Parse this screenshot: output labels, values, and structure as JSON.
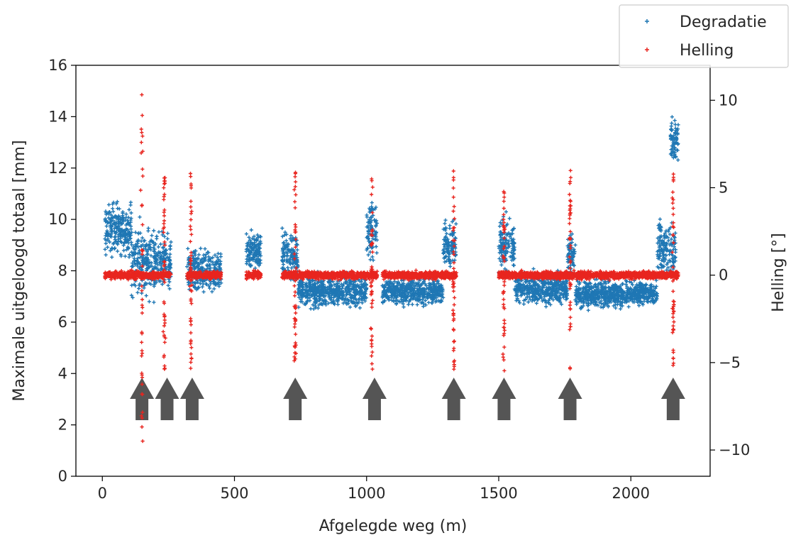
{
  "chart_data": {
    "type": "scatter",
    "title": "",
    "xlabel": "Afgelegde weg (m)",
    "ylabel": "Maximale uitgeloogd totaal [mm]",
    "y2label": "Helling [°]",
    "xlim": [
      -100,
      2300
    ],
    "ylim": [
      0,
      16
    ],
    "y2lim": [
      -11.5,
      12
    ],
    "xticks": [
      0,
      500,
      1000,
      1500,
      2000
    ],
    "yticks": [
      0,
      2,
      4,
      6,
      8,
      10,
      12,
      14,
      16
    ],
    "y2ticks": [
      -10,
      -5,
      0,
      5,
      10
    ],
    "legend_position": "top-right (outside)",
    "grid": false,
    "series": [
      {
        "name": "Degradatie",
        "axis": "left",
        "color": "#1f77b4",
        "marker": "plus",
        "segments": [
          {
            "x": [
              10,
              110
            ],
            "y_base": 9.6,
            "spread": 1.6
          },
          {
            "x": [
              110,
              200
            ],
            "y_base": 8.4,
            "spread": 2.2
          },
          {
            "x": [
              200,
              260
            ],
            "y_base": 8.3,
            "spread": 1.7
          },
          {
            "x": [
              320,
              450
            ],
            "y_base": 8.0,
            "spread": 1.2
          },
          {
            "x": [
              545,
              600
            ],
            "y_base": 8.8,
            "spread": 1.2
          },
          {
            "x": [
              680,
              740
            ],
            "y_base": 8.6,
            "spread": 1.6
          },
          {
            "x": [
              740,
              1000
            ],
            "y_base": 7.2,
            "spread": 0.9
          },
          {
            "x": [
              1000,
              1040
            ],
            "y_base": 9.6,
            "spread": 1.8
          },
          {
            "x": [
              1060,
              1290
            ],
            "y_base": 7.2,
            "spread": 0.8
          },
          {
            "x": [
              1290,
              1340
            ],
            "y_base": 9.0,
            "spread": 1.5
          },
          {
            "x": [
              1500,
              1560
            ],
            "y_base": 9.0,
            "spread": 1.8
          },
          {
            "x": [
              1560,
              1760
            ],
            "y_base": 7.3,
            "spread": 0.9
          },
          {
            "x": [
              1760,
              1790
            ],
            "y_base": 8.5,
            "spread": 1.5
          },
          {
            "x": [
              1790,
              2100
            ],
            "y_base": 7.1,
            "spread": 0.8
          },
          {
            "x": [
              2100,
              2170
            ],
            "y_base": 8.8,
            "spread": 1.8
          },
          {
            "x": [
              2150,
              2180
            ],
            "y_base": 13.0,
            "spread": 1.6
          }
        ]
      },
      {
        "name": "Helling",
        "axis": "right",
        "color": "#e8251f",
        "marker": "plus",
        "flat_segments": [
          [
            10,
            260
          ],
          [
            320,
            450
          ],
          [
            545,
            600
          ],
          [
            680,
            1040
          ],
          [
            1060,
            1340
          ],
          [
            1500,
            2180
          ]
        ],
        "flat_value": 0,
        "spikes": [
          {
            "x": 150,
            "min": -10.5,
            "max": 11.5
          },
          {
            "x": 235,
            "min": -5.5,
            "max": 6
          },
          {
            "x": 335,
            "min": -5.5,
            "max": 6
          },
          {
            "x": 730,
            "min": -5.5,
            "max": 6
          },
          {
            "x": 1020,
            "min": -5.5,
            "max": 6
          },
          {
            "x": 1330,
            "min": -5.5,
            "max": 6
          },
          {
            "x": 1520,
            "min": -5.5,
            "max": 5
          },
          {
            "x": 1770,
            "min": -5.5,
            "max": 6
          },
          {
            "x": 2160,
            "min": -5.5,
            "max": 6
          }
        ]
      }
    ],
    "annotations": {
      "type": "arrow-up",
      "color": "#555555",
      "x": [
        150,
        245,
        340,
        730,
        1030,
        1330,
        1520,
        1770,
        2160
      ]
    }
  }
}
